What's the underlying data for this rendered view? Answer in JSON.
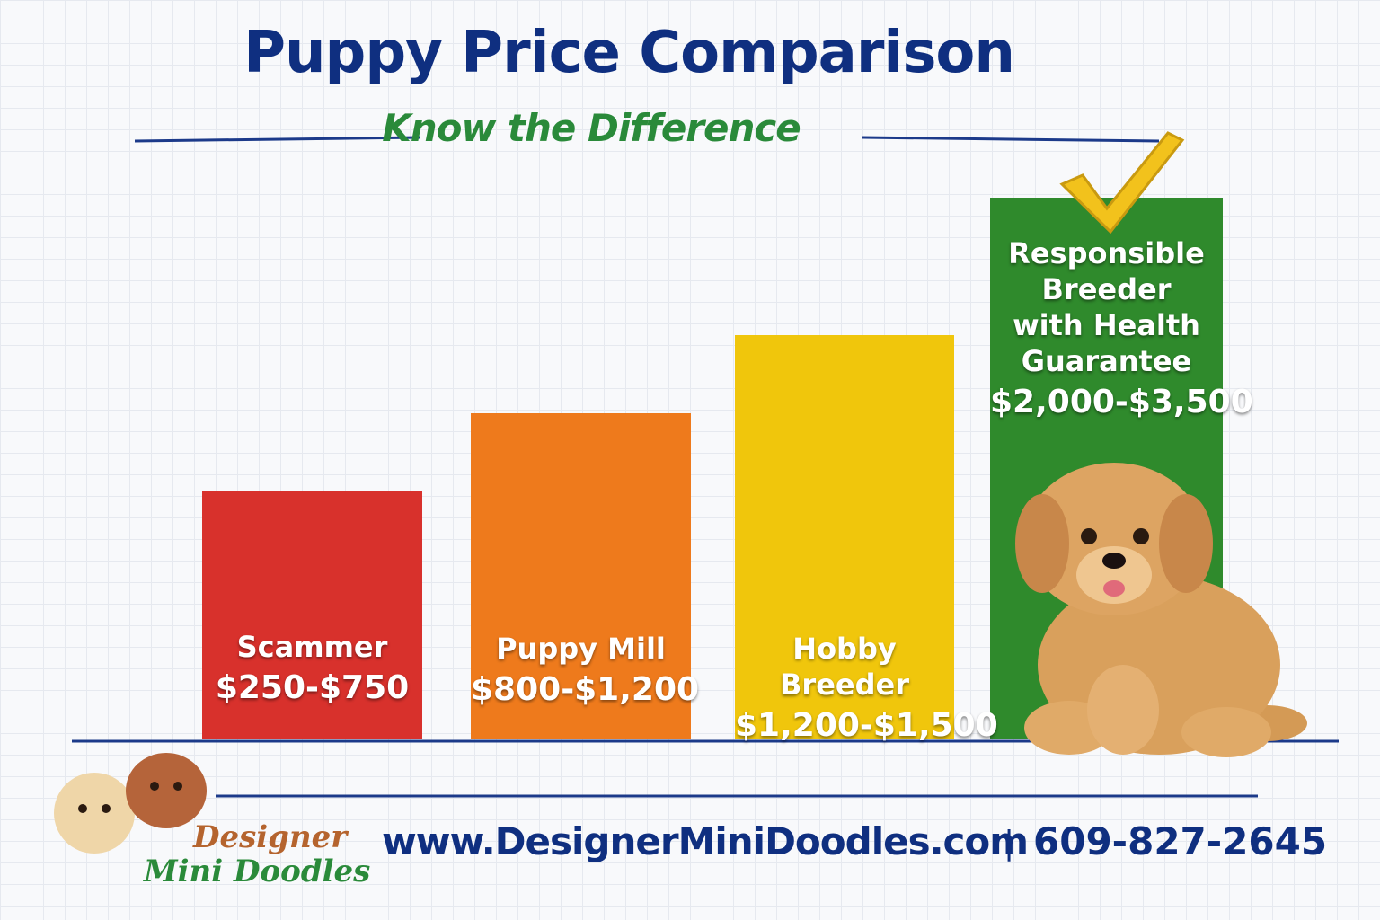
{
  "header": {
    "title": "Puppy Price Comparison",
    "subtitle": "Know the Difference"
  },
  "tiers": [
    {
      "label_lines": [
        "Scammer"
      ],
      "price": "$250-$750"
    },
    {
      "label_lines": [
        "Puppy Mill"
      ],
      "price": "$800-$1,200"
    },
    {
      "label_lines": [
        "Hobby Breeder"
      ],
      "price": "$1,200-$1,500"
    },
    {
      "label_lines": [
        "Responsible",
        "Breeder",
        "with Health",
        "Guarantee"
      ],
      "price": "$2,000-$3,500"
    }
  ],
  "footer": {
    "logo_lines": [
      "Designer",
      "Mini Doodles"
    ],
    "website": "www.DesignerMiniDoodles.com",
    "phone": "609-827-2645"
  }
}
